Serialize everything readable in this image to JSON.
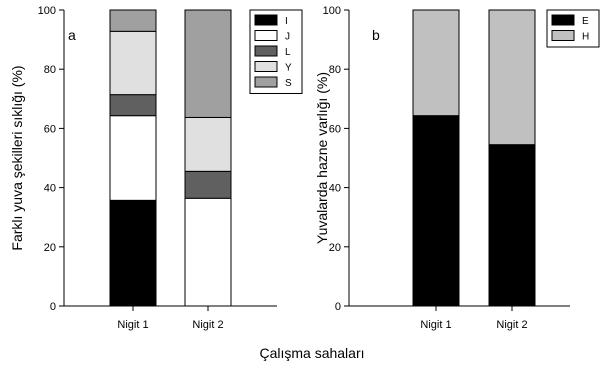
{
  "xlabel": "Çalışma sahaları",
  "chart_data": [
    {
      "type": "bar",
      "panel_letter": "a",
      "ylabel": "Farklı yuva şekilleri sıklığı (%)",
      "ylim": [
        0,
        100
      ],
      "yticks": [
        0,
        20,
        40,
        60,
        80,
        100
      ],
      "categories": [
        "Nigit 1",
        "Nigit 2"
      ],
      "stacked": true,
      "legend_position": "top-right",
      "series": [
        {
          "name": "I",
          "color": "#000000",
          "values": [
            35.7,
            0
          ]
        },
        {
          "name": "J",
          "color": "#ffffff",
          "values": [
            28.6,
            36.4
          ]
        },
        {
          "name": "L",
          "color": "#606060",
          "values": [
            7.1,
            9.1
          ]
        },
        {
          "name": "Y",
          "color": "#e0e0e0",
          "values": [
            21.4,
            18.2
          ]
        },
        {
          "name": "S",
          "color": "#a0a0a0",
          "values": [
            7.2,
            36.3
          ]
        }
      ]
    },
    {
      "type": "bar",
      "panel_letter": "b",
      "ylabel": "Yuvalarda hazne varlığı (%)",
      "ylim": [
        0,
        100
      ],
      "yticks": [
        0,
        20,
        40,
        60,
        80,
        100
      ],
      "categories": [
        "Nigit 1",
        "Nigit 2"
      ],
      "stacked": true,
      "legend_position": "top-right",
      "series": [
        {
          "name": "E",
          "color": "#000000",
          "values": [
            64.3,
            54.5
          ]
        },
        {
          "name": "H",
          "color": "#c0c0c0",
          "values": [
            35.7,
            45.5
          ]
        }
      ]
    }
  ]
}
